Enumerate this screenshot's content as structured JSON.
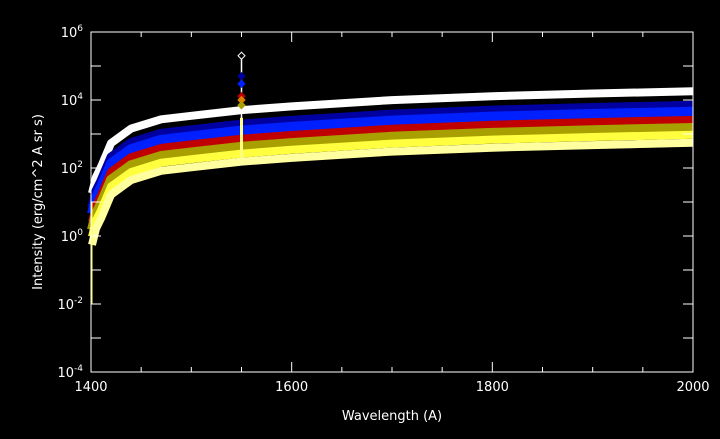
{
  "chart_data": {
    "type": "line",
    "title": "",
    "xlabel": "Wavelength (A)",
    "ylabel": "Intensity (erg/cm^2 A sr s)",
    "xlim": [
      1400,
      2000
    ],
    "ylim": [
      0.0001,
      1000000
    ],
    "yscale": "log",
    "grid": false,
    "x_ticks": [
      "1400",
      "1600",
      "1800",
      "2000"
    ],
    "x_tick_values": [
      1400,
      1600,
      1800,
      2000
    ],
    "y_tick_exponents": [
      "6",
      "4",
      "2",
      "0",
      "-2",
      "-4"
    ],
    "y_tick_base": "10",
    "x": [
      1401,
      1405,
      1410,
      1420,
      1440,
      1470,
      1500,
      1550,
      1600,
      1700,
      1800,
      1900,
      2000
    ],
    "series": [
      {
        "name": "white",
        "color": "#ffffff",
        "values": [
          18,
          54,
          108,
          540,
          1440,
          2700,
          3420,
          5040,
          6480,
          9900,
          12960,
          15480,
          18000
        ]
      },
      {
        "name": "dark-blue",
        "color": "#0000a0",
        "values": [
          7,
          21,
          42,
          210,
          560,
          1050,
          1330,
          1960,
          2520,
          3850,
          5040,
          6020,
          7000
        ]
      },
      {
        "name": "blue",
        "color": "#0020ff",
        "values": [
          4.5,
          13.5,
          27,
          135,
          360,
          675,
          855,
          1260,
          1620,
          2475,
          3240,
          3870,
          4500
        ]
      },
      {
        "name": "red",
        "color": "#c00000",
        "values": [
          2.6,
          7.8,
          15.6,
          78,
          208,
          390,
          494,
          728,
          936,
          1430,
          1872,
          2236,
          2600
        ]
      },
      {
        "name": "olive",
        "color": "#a8a000",
        "values": [
          1.5,
          4.5,
          9,
          45,
          120,
          225,
          285,
          420,
          540,
          825,
          1080,
          1290,
          1500
        ]
      },
      {
        "name": "yellow",
        "color": "#ffff40",
        "values": [
          0.95,
          2.9,
          5.7,
          28.5,
          76,
          143,
          181,
          266,
          342,
          523,
          684,
          817,
          950
        ]
      },
      {
        "name": "light-yellow",
        "color": "#ffffa0",
        "values": [
          0.55,
          1.65,
          3.3,
          16.5,
          44,
          83,
          105,
          154,
          198,
          303,
          396,
          473,
          550
        ]
      }
    ],
    "spike": {
      "x": 1550,
      "line_range": [
        200,
        200000
      ],
      "markers": [
        {
          "name": "white",
          "color": "#ffffff",
          "value": 200000
        },
        {
          "name": "dark-blue",
          "color": "#0000a0",
          "value": 50000
        },
        {
          "name": "blue",
          "color": "#0020ff",
          "value": 30000
        },
        {
          "name": "red",
          "color": "#c00000",
          "value": 13000
        },
        {
          "name": "orange",
          "color": "#e08000",
          "value": 10000
        },
        {
          "name": "olive",
          "color": "#a8a000",
          "value": 7000
        }
      ]
    }
  }
}
